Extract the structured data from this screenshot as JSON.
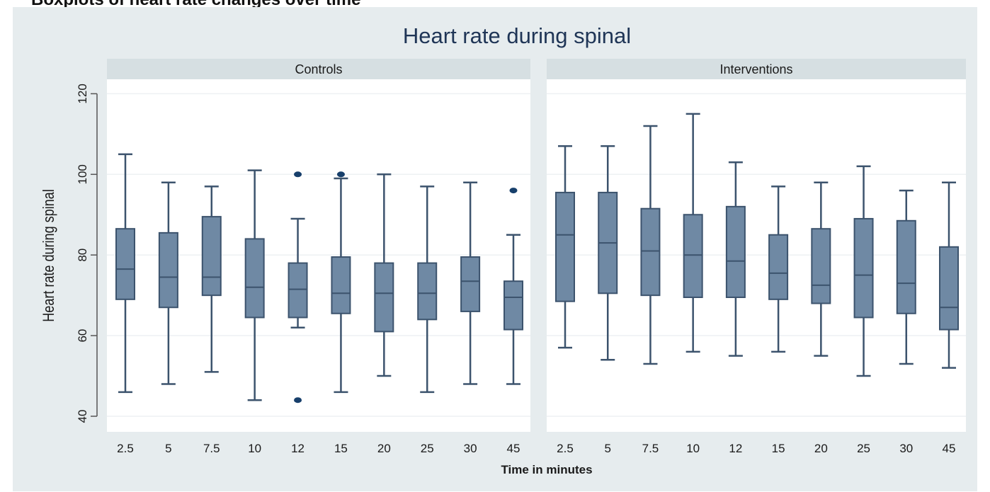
{
  "caption_fragment": "Boxplots of heart rate changes over time",
  "chart_data": {
    "type": "boxplot",
    "title": "Heart rate during spinal",
    "xlabel": "Time in minutes",
    "ylabel": "Heart rate during spinal",
    "ylim": [
      38,
      124
    ],
    "yticks": [
      40,
      60,
      80,
      100,
      120
    ],
    "categories": [
      "2.5",
      "5",
      "7.5",
      "10",
      "12",
      "15",
      "20",
      "25",
      "30",
      "45"
    ],
    "grid": true,
    "colors": {
      "outer_background": "#e6ecee",
      "panel_background": "#ffffff",
      "strip_background": "#d6dfe2",
      "box_fill": "#6f89a4",
      "box_stroke": "#3c536d",
      "whisker": "#3c536d",
      "outlier": "#173f6b",
      "gridline": "#eef1f3",
      "text": "#1a1a1a",
      "title": "#1f3556"
    },
    "panels": [
      {
        "name": "Controls",
        "boxes": [
          {
            "category": "2.5",
            "min": 46,
            "q1": 69,
            "median": 76.5,
            "q3": 86.5,
            "max": 105,
            "outliers": []
          },
          {
            "category": "5",
            "min": 48,
            "q1": 67,
            "median": 74.5,
            "q3": 85.5,
            "max": 98,
            "outliers": []
          },
          {
            "category": "7.5",
            "min": 51,
            "q1": 70,
            "median": 74.5,
            "q3": 89.5,
            "max": 97,
            "outliers": []
          },
          {
            "category": "10",
            "min": 44,
            "q1": 64.5,
            "median": 72,
            "q3": 84,
            "max": 101,
            "outliers": []
          },
          {
            "category": "12",
            "min": 62,
            "q1": 64.5,
            "median": 71.5,
            "q3": 78,
            "max": 89,
            "outliers": [
              100,
              44
            ]
          },
          {
            "category": "15",
            "min": 46,
            "q1": 65.5,
            "median": 70.5,
            "q3": 79.5,
            "max": 99,
            "outliers": [
              100
            ]
          },
          {
            "category": "20",
            "min": 50,
            "q1": 61,
            "median": 70.5,
            "q3": 78,
            "max": 100,
            "outliers": []
          },
          {
            "category": "25",
            "min": 46,
            "q1": 64,
            "median": 70.5,
            "q3": 78,
            "max": 97,
            "outliers": []
          },
          {
            "category": "30",
            "min": 48,
            "q1": 66,
            "median": 73.5,
            "q3": 79.5,
            "max": 98,
            "outliers": []
          },
          {
            "category": "45",
            "min": 48,
            "q1": 61.5,
            "median": 69.5,
            "q3": 73.5,
            "max": 85,
            "outliers": [
              96
            ]
          }
        ]
      },
      {
        "name": "Interventions",
        "boxes": [
          {
            "category": "2.5",
            "min": 57,
            "q1": 68.5,
            "median": 85,
            "q3": 95.5,
            "max": 107,
            "outliers": []
          },
          {
            "category": "5",
            "min": 54,
            "q1": 70.5,
            "median": 83,
            "q3": 95.5,
            "max": 107,
            "outliers": []
          },
          {
            "category": "7.5",
            "min": 53,
            "q1": 70,
            "median": 81,
            "q3": 91.5,
            "max": 112,
            "outliers": []
          },
          {
            "category": "10",
            "min": 56,
            "q1": 69.5,
            "median": 80,
            "q3": 90,
            "max": 115,
            "outliers": []
          },
          {
            "category": "12",
            "min": 55,
            "q1": 69.5,
            "median": 78.5,
            "q3": 92,
            "max": 103,
            "outliers": []
          },
          {
            "category": "15",
            "min": 56,
            "q1": 69,
            "median": 75.5,
            "q3": 85,
            "max": 97,
            "outliers": []
          },
          {
            "category": "20",
            "min": 55,
            "q1": 68,
            "median": 72.5,
            "q3": 86.5,
            "max": 98,
            "outliers": []
          },
          {
            "category": "25",
            "min": 50,
            "q1": 64.5,
            "median": 75,
            "q3": 89,
            "max": 102,
            "outliers": []
          },
          {
            "category": "30",
            "min": 53,
            "q1": 65.5,
            "median": 73,
            "q3": 88.5,
            "max": 96,
            "outliers": []
          },
          {
            "category": "45",
            "min": 52,
            "q1": 61.5,
            "median": 67,
            "q3": 82,
            "max": 98,
            "outliers": []
          }
        ]
      }
    ]
  }
}
